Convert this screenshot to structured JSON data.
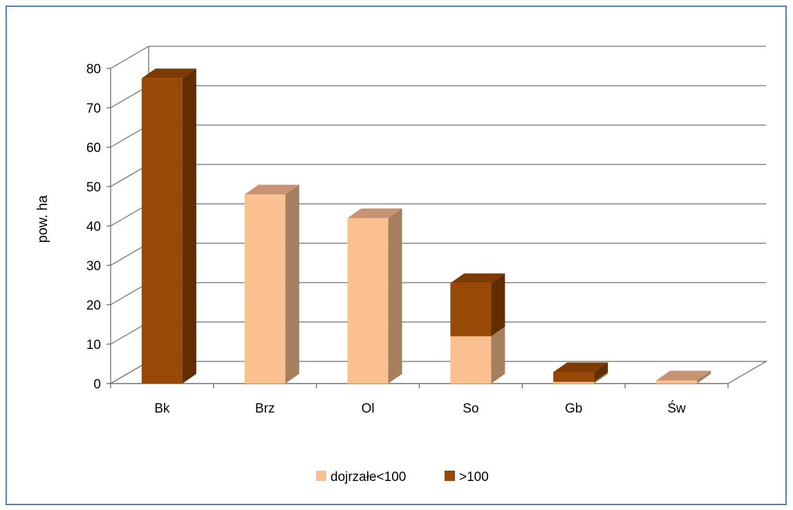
{
  "chart_data": {
    "type": "bar",
    "stacked": true,
    "three_d": true,
    "title": "",
    "xlabel": "",
    "ylabel": "pow. ha",
    "ylim": [
      0,
      80
    ],
    "yticks": [
      0,
      10,
      20,
      30,
      40,
      50,
      60,
      70,
      80
    ],
    "grid": true,
    "legend_position": "bottom",
    "categories": [
      "Bk",
      "Brz",
      "Ol",
      "So",
      "Gb",
      "Św"
    ],
    "series": [
      {
        "name": "dojrzałe<100",
        "color": "#fac090",
        "values": [
          0,
          48,
          42,
          12,
          0.4,
          0.8
        ]
      },
      {
        "name": ">100",
        "color": "#984807",
        "values": [
          77.5,
          0,
          0,
          13.5,
          2.5,
          0
        ]
      }
    ]
  }
}
